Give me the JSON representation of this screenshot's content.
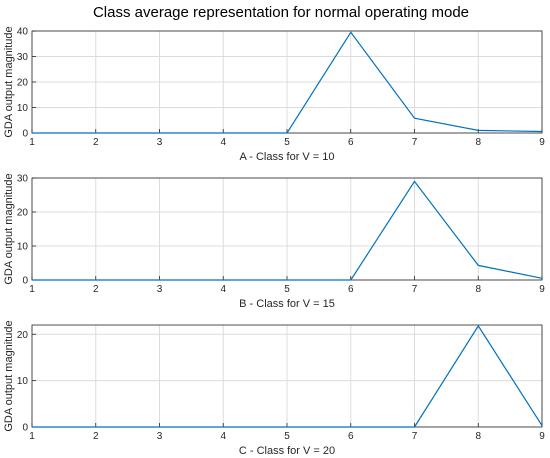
{
  "figure": {
    "title": "Class average representation for normal operating mode"
  },
  "chart_data": [
    {
      "type": "line",
      "xlabel": "A - Class for V = 10",
      "ylabel": "GDA output magnitude",
      "xlim": [
        1,
        9
      ],
      "ylim": [
        0,
        40
      ],
      "xticks": [
        1,
        2,
        3,
        4,
        5,
        6,
        7,
        8,
        9
      ],
      "yticks": [
        0,
        10,
        20,
        30,
        40
      ],
      "grid": true,
      "color": "#0072BD",
      "x": [
        1,
        2,
        3,
        4,
        5,
        6,
        7,
        8,
        9
      ],
      "y": [
        0,
        0,
        0,
        0,
        0,
        39.5,
        5.8,
        1.0,
        0.6
      ]
    },
    {
      "type": "line",
      "xlabel": "B - Class  for V = 15",
      "ylabel": "GDA output magnitude",
      "xlim": [
        1,
        9
      ],
      "ylim": [
        0,
        30
      ],
      "xticks": [
        1,
        2,
        3,
        4,
        5,
        6,
        7,
        8,
        9
      ],
      "yticks": [
        0,
        10,
        20,
        30
      ],
      "grid": true,
      "color": "#0072BD",
      "x": [
        1,
        2,
        3,
        4,
        5,
        6,
        7,
        8,
        9
      ],
      "y": [
        0,
        0,
        0,
        0,
        0,
        0,
        29.0,
        4.3,
        0.5
      ]
    },
    {
      "type": "line",
      "xlabel": "C - Class for V = 20",
      "ylabel": "GDA output magnitude",
      "xlim": [
        1,
        9
      ],
      "ylim": [
        0,
        22
      ],
      "xticks": [
        1,
        2,
        3,
        4,
        5,
        6,
        7,
        8,
        9
      ],
      "yticks": [
        0,
        10,
        20
      ],
      "grid": true,
      "color": "#0072BD",
      "x": [
        1,
        2,
        3,
        4,
        5,
        6,
        7,
        8,
        9
      ],
      "y": [
        0,
        0,
        0,
        0,
        0,
        0,
        0,
        21.8,
        0.3
      ]
    }
  ]
}
